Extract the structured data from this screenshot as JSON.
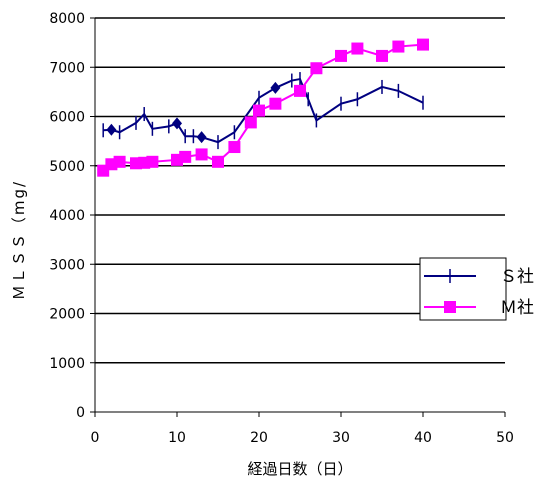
{
  "chart_data": {
    "type": "line",
    "xlabel": "経過日数（日）",
    "ylabel": "ＭＬＳＳ（mg/",
    "xlim": [
      0,
      50
    ],
    "ylim": [
      0,
      8000
    ],
    "x_ticks": [
      "0",
      "10",
      "20",
      "30",
      "40",
      "50"
    ],
    "y_ticks": [
      "0",
      "1000",
      "2000",
      "3000",
      "4000",
      "5000",
      "6000",
      "7000",
      "8000"
    ],
    "grid": "horizontal",
    "legend_position": "right",
    "series": [
      {
        "name": "Ｓ社",
        "color": "#000080",
        "marker": "tick",
        "points": [
          {
            "x": 1,
            "y": 5720
          },
          {
            "x": 2,
            "y": 5730,
            "marker": "diamond"
          },
          {
            "x": 3,
            "y": 5680
          },
          {
            "x": 5,
            "y": 5870
          },
          {
            "x": 6,
            "y": 6050
          },
          {
            "x": 7,
            "y": 5750
          },
          {
            "x": 9,
            "y": 5800
          },
          {
            "x": 10,
            "y": 5860,
            "marker": "diamond"
          },
          {
            "x": 11,
            "y": 5600
          },
          {
            "x": 12,
            "y": 5600
          },
          {
            "x": 13,
            "y": 5580,
            "marker": "diamond"
          },
          {
            "x": 15,
            "y": 5480
          },
          {
            "x": 17,
            "y": 5680
          },
          {
            "x": 20,
            "y": 6380
          },
          {
            "x": 22,
            "y": 6580,
            "marker": "diamond"
          },
          {
            "x": 24,
            "y": 6730
          },
          {
            "x": 25,
            "y": 6760
          },
          {
            "x": 26,
            "y": 6350
          },
          {
            "x": 27,
            "y": 5920
          },
          {
            "x": 30,
            "y": 6260
          },
          {
            "x": 32,
            "y": 6350
          },
          {
            "x": 35,
            "y": 6600
          },
          {
            "x": 37,
            "y": 6520
          },
          {
            "x": 40,
            "y": 6280
          }
        ]
      },
      {
        "name": "Ｍ社",
        "color": "#ff00ff",
        "marker": "square",
        "points": [
          {
            "x": 1,
            "y": 4900
          },
          {
            "x": 2,
            "y": 5030
          },
          {
            "x": 3,
            "y": 5080
          },
          {
            "x": 5,
            "y": 5050
          },
          {
            "x": 6,
            "y": 5060
          },
          {
            "x": 7,
            "y": 5080
          },
          {
            "x": 10,
            "y": 5120
          },
          {
            "x": 11,
            "y": 5180
          },
          {
            "x": 13,
            "y": 5230
          },
          {
            "x": 15,
            "y": 5080
          },
          {
            "x": 17,
            "y": 5380
          },
          {
            "x": 19,
            "y": 5880
          },
          {
            "x": 20,
            "y": 6120
          },
          {
            "x": 22,
            "y": 6260
          },
          {
            "x": 25,
            "y": 6520
          },
          {
            "x": 27,
            "y": 6980
          },
          {
            "x": 30,
            "y": 7230
          },
          {
            "x": 32,
            "y": 7380
          },
          {
            "x": 35,
            "y": 7230
          },
          {
            "x": 37,
            "y": 7420
          },
          {
            "x": 40,
            "y": 7460
          }
        ]
      }
    ]
  }
}
